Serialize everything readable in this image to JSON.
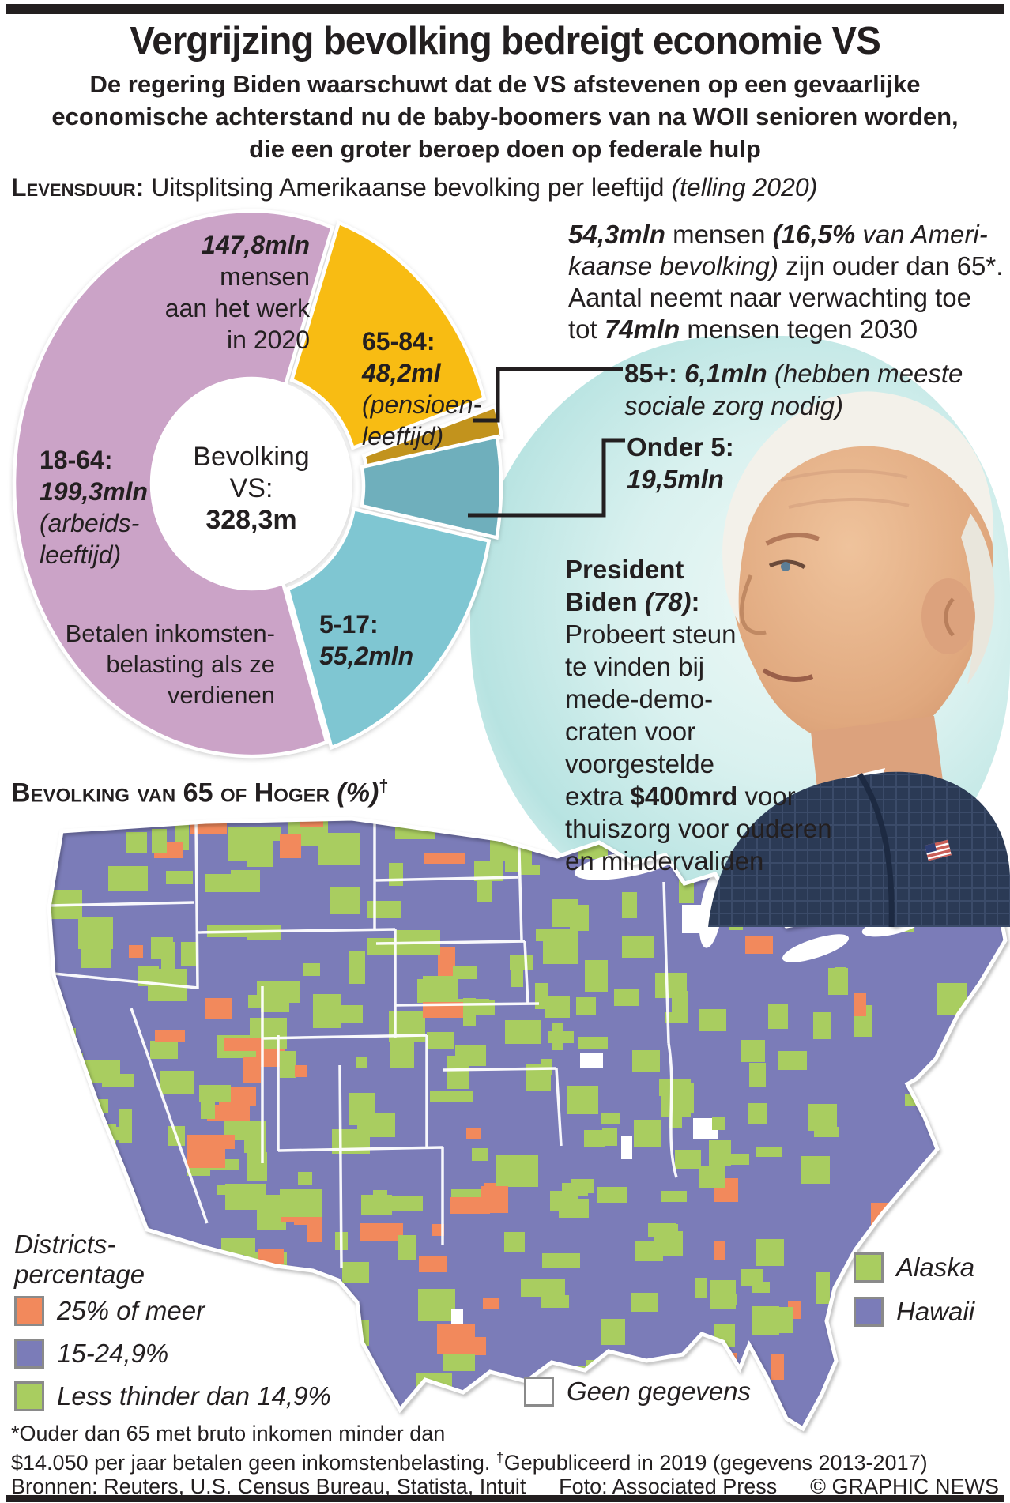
{
  "header": {
    "title": "Vergrijzing bevolking bedreigt economie VS",
    "subtitle_lines": [
      "De regering Biden waarschuwt dat de VS afstevenen op een gevaarlijke",
      "economische achterstand nu de baby-boomers van na WOII senioren worden,",
      "die een groter beroep doen op federale hulp"
    ]
  },
  "kicker": {
    "segments": [
      [
        "Levensduur:",
        "sc"
      ],
      [
        " Uitsplitsing Amerikaanse bevolking per leeftijd ",
        ""
      ],
      [
        "(telling 2020)",
        "i"
      ]
    ]
  },
  "chart_data": [
    {
      "type": "pie",
      "title": "LEVENSDUUR: Uitsplitsing Amerikaanse bevolking per leeftijd (telling 2020)",
      "center_label": "Bevolking VS:",
      "center_value": "328,3m",
      "total_mln": 328.3,
      "start_angle_deg": 20,
      "slices": [
        {
          "label": "65-84",
          "value_mln": 48.2,
          "display": "48,2ml",
          "note": "pensioen-leeftijd",
          "color": "#f8bc13"
        },
        {
          "label": "85+",
          "value_mln": 6.1,
          "display": "6,1mln",
          "note": "hebben meeste sociale zorg nodig",
          "color": "#c2931d"
        },
        {
          "label": "Onder 5",
          "value_mln": 19.5,
          "display": "19,5mln",
          "color": "#6fafbc"
        },
        {
          "label": "5-17",
          "value_mln": 55.2,
          "display": "55,2mln",
          "color": "#7fc6d2"
        },
        {
          "label": "18-64",
          "value_mln": 199.3,
          "display": "199,3mln",
          "note": "arbeids-leeftijd; 147,8mln mensen aan het werk in 2020; betalen inkomstenbelasting als ze verdienen",
          "color": "#cba3c7"
        }
      ]
    },
    {
      "type": "heatmap",
      "title": "Bevolking van 65 of Hoger (%)",
      "subtitle": "Districtspercentage",
      "geography": "Verenigde Staten per district (county-choropleth)",
      "classes": [
        {
          "label": "25% of meer",
          "color": "#f2895c"
        },
        {
          "label": "15-24,9%",
          "color": "#7b7cb8"
        },
        {
          "label": "Less thinder dan 14,9%",
          "color": "#a9cd60"
        },
        {
          "label": "Geen gegevens",
          "color": "#ffffff"
        }
      ],
      "state_overrides": [
        {
          "state": "Alaska",
          "class": "Less thinder dan 14,9%",
          "color": "#a9cd60"
        },
        {
          "state": "Hawaii",
          "class": "15-24,9%",
          "color": "#7b7cb8"
        }
      ]
    }
  ],
  "pie_labels": {
    "work": {
      "segments": [
        [
          "147,8mln",
          "bi"
        ],
        [
          "\nmensen\naan het werk\nin 2020",
          ""
        ]
      ]
    },
    "age6584": {
      "segments": [
        [
          "65-84:",
          "b"
        ],
        [
          "\n",
          ""
        ],
        [
          "48,2ml",
          "bi"
        ],
        [
          "\n",
          ""
        ],
        [
          "(pensioen-\nleeftijd)",
          "i"
        ]
      ]
    },
    "age1864": {
      "segments": [
        [
          "18-64:",
          "b"
        ],
        [
          "\n",
          ""
        ],
        [
          "199,3mln",
          "bi"
        ],
        [
          "\n",
          ""
        ],
        [
          "(arbeids-\nleeftijd)",
          "i"
        ]
      ]
    },
    "tax": {
      "segments": [
        [
          "Betalen inkomsten-\nbelasting als ze\nverdienen",
          ""
        ]
      ]
    },
    "age517": {
      "segments": [
        [
          "5-17:",
          "b"
        ],
        [
          "\n",
          ""
        ],
        [
          "55,2mln",
          "bi"
        ]
      ]
    },
    "center": {
      "segments": [
        [
          "Bevolking\nVS:",
          ""
        ],
        [
          "\n",
          ""
        ],
        [
          "328,3m",
          "b"
        ]
      ]
    }
  },
  "callouts": {
    "over65_box": {
      "bg": "#fcc10e",
      "segments": [
        [
          "54,3mln",
          "bi"
        ],
        [
          " mensen ",
          ""
        ],
        [
          "(16,5%",
          "bi"
        ],
        [
          " van Ameri-",
          "i"
        ],
        [
          "\n",
          ""
        ],
        [
          "kaanse bevolking)",
          "i"
        ],
        [
          " zijn ouder dan 65*.",
          ""
        ],
        [
          "\n",
          ""
        ],
        [
          "Aantal neemt naar verwachting toe",
          ""
        ],
        [
          "\n",
          ""
        ],
        [
          "tot ",
          ""
        ],
        [
          "74mln",
          "bi"
        ],
        [
          " mensen tegen 2030",
          ""
        ]
      ]
    },
    "age85": {
      "segments": [
        [
          "85+: ",
          "b"
        ],
        [
          "6,1mln",
          "bi"
        ],
        [
          "  ",
          ""
        ],
        [
          "(hebben meeste",
          "i"
        ],
        [
          "\n",
          ""
        ],
        [
          "sociale zorg nodig)",
          "i"
        ]
      ]
    },
    "under5": {
      "segments": [
        [
          "Onder 5:",
          "b"
        ],
        [
          "\n",
          ""
        ],
        [
          "19,5mln",
          "bi"
        ]
      ]
    },
    "biden": {
      "segments": [
        [
          "President\nBiden ",
          "b"
        ],
        [
          "(78)",
          "bi"
        ],
        [
          ":",
          "b"
        ],
        [
          "\nProbeert steun\nte vinden bij\nmede-demo-\ncraten voor\nvoorgestelde\nextra ",
          ""
        ],
        [
          "$400mrd",
          "b"
        ],
        [
          " voor\nthuiszorg voor ouderen\nen mindervaliden",
          ""
        ]
      ]
    }
  },
  "map_section": {
    "heading_segments": [
      [
        "Bevolking van 65 of Hoger ",
        "sc"
      ],
      [
        "(%)",
        "i"
      ],
      [
        "†",
        "sup"
      ]
    ]
  },
  "legend": {
    "title_lines": [
      "Districts-",
      "percentage"
    ],
    "items": [
      {
        "label": "25% of meer",
        "color": "#f2895c"
      },
      {
        "label": "15-24,9%",
        "color": "#7b7cb8"
      },
      {
        "label": "Less thinder dan 14,9%",
        "color": "#a9cd60"
      }
    ],
    "states": [
      {
        "label": "Alaska",
        "color": "#a9cd60"
      },
      {
        "label": "Hawaii",
        "color": "#7b7cb8"
      }
    ],
    "no_data": {
      "label": "Geen gegevens",
      "color": "#ffffff"
    }
  },
  "footer": {
    "line1": "*Ouder dan 65 met bruto inkomen minder dan",
    "line2_segments": [
      [
        "$14.050 per jaar betalen geen inkomstenbelasting. ",
        ""
      ],
      [
        "†",
        "sup"
      ],
      [
        "Gepubliceerd in 2019 (gegevens 2013-2017)",
        ""
      ]
    ],
    "sources": "Bronnen: Reuters, U.S. Census Bureau, Statista, Intuit",
    "photo": "Foto: Associated Press",
    "copyright": "© GRAPHIC NEWS"
  },
  "colors": {
    "rule": "#231f20",
    "backdrop": "#cfeceb"
  }
}
